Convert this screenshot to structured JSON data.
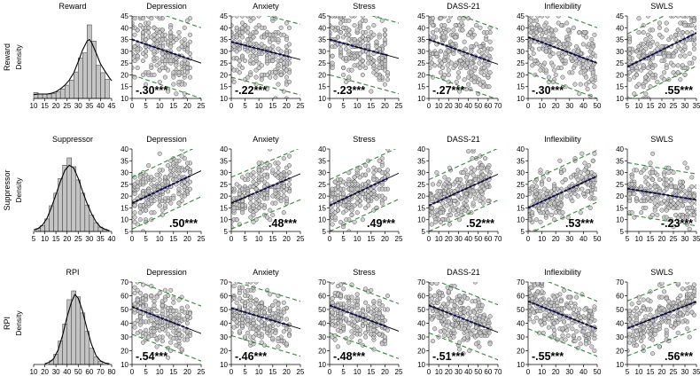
{
  "figure": {
    "density_axis_label": "Density"
  },
  "chart_data": {
    "type": "scatter",
    "rows": [
      {
        "name": "Reward",
        "row_label": "Reward",
        "hist_title": "Reward",
        "hist": {
          "xlim": [
            10,
            45
          ],
          "xticks": [
            "10",
            "15",
            "20",
            "25",
            "30",
            "35",
            "40",
            "45"
          ],
          "bins": [
            11,
            13,
            15,
            17,
            19,
            21,
            23,
            25,
            27,
            29,
            31,
            33,
            35,
            37,
            39,
            41,
            43
          ],
          "heights": [
            0.08,
            0.06,
            0.06,
            0.06,
            0.07,
            0.09,
            0.13,
            0.18,
            0.25,
            0.36,
            0.55,
            0.62,
            1.0,
            0.78,
            0.45,
            0.35,
            0.26
          ],
          "density_curve": [
            [
              10,
              0.05
            ],
            [
              12,
              0.06
            ],
            [
              14,
              0.06
            ],
            [
              16,
              0.06
            ],
            [
              18,
              0.07
            ],
            [
              20,
              0.09
            ],
            [
              22,
              0.13
            ],
            [
              24,
              0.18
            ],
            [
              26,
              0.25
            ],
            [
              28,
              0.35
            ],
            [
              30,
              0.5
            ],
            [
              32,
              0.66
            ],
            [
              34,
              0.78
            ],
            [
              35,
              0.8
            ],
            [
              36,
              0.76
            ],
            [
              38,
              0.62
            ],
            [
              40,
              0.47
            ],
            [
              42,
              0.37
            ],
            [
              44,
              0.28
            ],
            [
              45,
              0.24
            ]
          ]
        },
        "ylim": [
          10,
          45
        ],
        "yticks": [
          "10",
          "15",
          "20",
          "25",
          "30",
          "35",
          "40",
          "45"
        ],
        "panels": [
          {
            "title": "Depression",
            "xlim": [
              0,
              25
            ],
            "xticks": [
              "0",
              "5",
              "10",
              "15",
              "20",
              "25"
            ],
            "xmax_data": 21,
            "fit": {
              "intercept": 35,
              "slope": -0.4
            },
            "pi_halfwidth": 15,
            "r_label": "-.30***",
            "r_pos": "bottom-left"
          },
          {
            "title": "Anxiety",
            "xlim": [
              0,
              25
            ],
            "xticks": [
              "0",
              "5",
              "10",
              "15",
              "20",
              "25"
            ],
            "xmax_data": 21,
            "fit": {
              "intercept": 34,
              "slope": -0.3
            },
            "pi_halfwidth": 15,
            "r_label": "-.22***",
            "r_pos": "bottom-left"
          },
          {
            "title": "Stress",
            "xlim": [
              0,
              25
            ],
            "xticks": [
              "0",
              "5",
              "10",
              "15",
              "20",
              "25"
            ],
            "xmax_data": 21,
            "fit": {
              "intercept": 35,
              "slope": -0.32
            },
            "pi_halfwidth": 15,
            "r_label": "-.23***",
            "r_pos": "bottom-left"
          },
          {
            "title": "DASS-21",
            "xlim": [
              0,
              70
            ],
            "xticks": [
              "0",
              "10",
              "20",
              "30",
              "40",
              "50",
              "60",
              "70"
            ],
            "xmax_data": 63,
            "fit": {
              "intercept": 35,
              "slope": -0.15
            },
            "pi_halfwidth": 15,
            "r_label": "-.27***",
            "r_pos": "bottom-left"
          },
          {
            "title": "Inflexibility",
            "xlim": [
              0,
              50
            ],
            "xticks": [
              "0",
              "10",
              "20",
              "30",
              "40",
              "50"
            ],
            "xmax_data": 49,
            "fit": {
              "intercept": 36,
              "slope": -0.22
            },
            "pi_halfwidth": 15,
            "r_label": "-.30***",
            "r_pos": "bottom-left"
          },
          {
            "title": "SWLS",
            "xlim": [
              5,
              35
            ],
            "xticks": [
              "5",
              "10",
              "15",
              "20",
              "25",
              "30",
              "35"
            ],
            "xmax_data": 35,
            "fit": {
              "intercept": 21,
              "slope": 0.48
            },
            "pi_halfwidth": 14,
            "r_label": ".55***",
            "r_pos": "bottom-right"
          }
        ]
      },
      {
        "name": "Suppressor",
        "row_label": "Suppressor",
        "hist_title": "Suppressor",
        "hist": {
          "xlim": [
            5,
            40
          ],
          "xticks": [
            "5",
            "10",
            "15",
            "20",
            "25",
            "30",
            "35",
            "40"
          ],
          "bins": [
            7,
            9,
            11,
            13,
            15,
            17,
            19,
            21,
            23,
            25,
            27,
            29,
            31,
            33,
            35,
            37
          ],
          "heights": [
            0.04,
            0.08,
            0.17,
            0.35,
            0.52,
            0.72,
            0.9,
            1.0,
            0.88,
            0.7,
            0.52,
            0.36,
            0.22,
            0.12,
            0.06,
            0.03
          ],
          "density_curve": [
            [
              5,
              0.02
            ],
            [
              7,
              0.04
            ],
            [
              9,
              0.09
            ],
            [
              11,
              0.18
            ],
            [
              13,
              0.33
            ],
            [
              15,
              0.5
            ],
            [
              17,
              0.68
            ],
            [
              19,
              0.83
            ],
            [
              21,
              0.9
            ],
            [
              23,
              0.86
            ],
            [
              25,
              0.72
            ],
            [
              27,
              0.54
            ],
            [
              29,
              0.38
            ],
            [
              31,
              0.24
            ],
            [
              33,
              0.13
            ],
            [
              35,
              0.06
            ],
            [
              37,
              0.03
            ],
            [
              39,
              0.01
            ]
          ]
        },
        "ylim": [
          5,
          40
        ],
        "yticks": [
          "5",
          "10",
          "15",
          "20",
          "25",
          "30",
          "35",
          "40"
        ],
        "panels": [
          {
            "title": "Depression",
            "xlim": [
              0,
              25
            ],
            "xticks": [
              "0",
              "5",
              "10",
              "15",
              "20",
              "25"
            ],
            "xmax_data": 21,
            "fit": {
              "intercept": 17,
              "slope": 0.55
            },
            "pi_halfwidth": 11,
            "r_label": ".50***",
            "r_pos": "bottom-right"
          },
          {
            "title": "Anxiety",
            "xlim": [
              0,
              25
            ],
            "xticks": [
              "0",
              "5",
              "10",
              "15",
              "20",
              "25"
            ],
            "xmax_data": 21,
            "fit": {
              "intercept": 17,
              "slope": 0.5
            },
            "pi_halfwidth": 11,
            "r_label": ".48***",
            "r_pos": "bottom-right"
          },
          {
            "title": "Stress",
            "xlim": [
              0,
              25
            ],
            "xticks": [
              "0",
              "5",
              "10",
              "15",
              "20",
              "25"
            ],
            "xmax_data": 21,
            "fit": {
              "intercept": 16,
              "slope": 0.55
            },
            "pi_halfwidth": 11,
            "r_label": ".49***",
            "r_pos": "bottom-right"
          },
          {
            "title": "DASS-21",
            "xlim": [
              0,
              70
            ],
            "xticks": [
              "0",
              "10",
              "20",
              "30",
              "40",
              "50",
              "60",
              "70"
            ],
            "xmax_data": 63,
            "fit": {
              "intercept": 16,
              "slope": 0.19
            },
            "pi_halfwidth": 11,
            "r_label": ".52***",
            "r_pos": "bottom-right"
          },
          {
            "title": "Inflexibility",
            "xlim": [
              0,
              50
            ],
            "xticks": [
              "0",
              "10",
              "20",
              "30",
              "40",
              "50"
            ],
            "xmax_data": 49,
            "fit": {
              "intercept": 15,
              "slope": 0.27
            },
            "pi_halfwidth": 11,
            "r_label": ".53***",
            "r_pos": "bottom-right"
          },
          {
            "title": "SWLS",
            "xlim": [
              5,
              35
            ],
            "xticks": [
              "5",
              "10",
              "15",
              "20",
              "25",
              "30",
              "35"
            ],
            "xmax_data": 35,
            "fit": {
              "intercept": 24,
              "slope": -0.16
            },
            "pi_halfwidth": 11,
            "r_label": "-.23***",
            "r_pos": "bottom-right"
          }
        ]
      },
      {
        "name": "RPI",
        "row_label": "RPI",
        "hist_title": "RPI",
        "hist": {
          "xlim": [
            10,
            80
          ],
          "xticks": [
            "10",
            "20",
            "30",
            "40",
            "50",
            "60",
            "70",
            "80"
          ],
          "bins": [
            26,
            30,
            34,
            38,
            42,
            46,
            50,
            54,
            58,
            62,
            66,
            70
          ],
          "heights": [
            0.05,
            0.14,
            0.32,
            0.55,
            0.88,
            1.0,
            0.92,
            0.7,
            0.45,
            0.22,
            0.1,
            0.04
          ],
          "density_curve": [
            [
              20,
              0.01
            ],
            [
              24,
              0.03
            ],
            [
              28,
              0.08
            ],
            [
              32,
              0.2
            ],
            [
              36,
              0.4
            ],
            [
              40,
              0.65
            ],
            [
              44,
              0.85
            ],
            [
              47,
              0.95
            ],
            [
              50,
              0.9
            ],
            [
              54,
              0.72
            ],
            [
              58,
              0.48
            ],
            [
              62,
              0.27
            ],
            [
              66,
              0.12
            ],
            [
              70,
              0.05
            ],
            [
              74,
              0.02
            ],
            [
              78,
              0.01
            ]
          ]
        },
        "ylim": [
          10,
          70
        ],
        "yticks": [
          "10",
          "20",
          "30",
          "40",
          "50",
          "60",
          "70"
        ],
        "panels": [
          {
            "title": "Depression",
            "xlim": [
              0,
              25
            ],
            "xticks": [
              "0",
              "5",
              "10",
              "15",
              "20",
              "25"
            ],
            "xmax_data": 21,
            "fit": {
              "intercept": 52,
              "slope": -0.78
            },
            "pi_halfwidth": 20,
            "r_label": "-.54***",
            "r_pos": "bottom-left"
          },
          {
            "title": "Anxiety",
            "xlim": [
              0,
              25
            ],
            "xticks": [
              "0",
              "5",
              "10",
              "15",
              "20",
              "25"
            ],
            "xmax_data": 21,
            "fit": {
              "intercept": 51,
              "slope": -0.6
            },
            "pi_halfwidth": 20,
            "r_label": "-.46***",
            "r_pos": "bottom-left"
          },
          {
            "title": "Stress",
            "xlim": [
              0,
              25
            ],
            "xticks": [
              "0",
              "5",
              "10",
              "15",
              "20",
              "25"
            ],
            "xmax_data": 21,
            "fit": {
              "intercept": 53,
              "slope": -0.75
            },
            "pi_halfwidth": 20,
            "r_label": "-.48***",
            "r_pos": "bottom-left"
          },
          {
            "title": "DASS-21",
            "xlim": [
              0,
              70
            ],
            "xticks": [
              "0",
              "10",
              "20",
              "30",
              "40",
              "50",
              "60",
              "70"
            ],
            "xmax_data": 63,
            "fit": {
              "intercept": 53,
              "slope": -0.28
            },
            "pi_halfwidth": 20,
            "r_label": "-.51***",
            "r_pos": "bottom-left"
          },
          {
            "title": "Inflexibility",
            "xlim": [
              0,
              50
            ],
            "xticks": [
              "0",
              "10",
              "20",
              "30",
              "40",
              "50"
            ],
            "xmax_data": 49,
            "fit": {
              "intercept": 56,
              "slope": -0.4
            },
            "pi_halfwidth": 20,
            "r_label": "-.55***",
            "r_pos": "bottom-left"
          },
          {
            "title": "SWLS",
            "xlim": [
              5,
              35
            ],
            "xticks": [
              "5",
              "10",
              "15",
              "20",
              "25",
              "30",
              "35"
            ],
            "xmax_data": 35,
            "fit": {
              "intercept": 33,
              "slope": 0.65
            },
            "pi_halfwidth": 20,
            "r_label": ".56***",
            "r_pos": "bottom-right"
          }
        ]
      }
    ]
  }
}
